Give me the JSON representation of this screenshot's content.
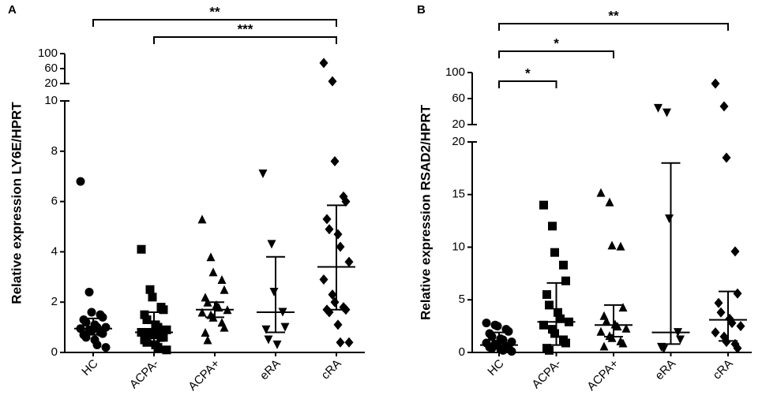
{
  "chart_data": [
    {
      "type": "dot",
      "panel": "A",
      "ylabel": "Relative expression LY6E/HPRT",
      "categories": [
        "HC",
        "ACPA-",
        "ACPA+",
        "eRA",
        "cRA"
      ],
      "markers": [
        "circle",
        "square",
        "triangle-up",
        "triangle-down",
        "diamond"
      ],
      "color": "#000000",
      "ylim": [
        0,
        10
      ],
      "yticks": [
        0,
        2,
        4,
        6,
        8,
        10
      ],
      "ylim_upper": [
        20,
        100
      ],
      "yticks_upper": [
        20,
        60,
        100
      ],
      "points": [
        [
          6.8,
          2.4,
          1.6,
          1.5,
          1.4,
          1.3,
          1.2,
          1.1,
          1.0,
          1.0,
          0.95,
          0.9,
          0.85,
          0.8,
          0.75,
          0.7,
          0.6,
          0.5,
          0.3,
          0.2
        ],
        [
          4.1,
          2.5,
          2.2,
          1.8,
          1.7,
          1.5,
          1.3,
          1.1,
          1.0,
          0.9,
          0.8,
          0.8,
          0.7,
          0.6,
          0.6,
          0.5,
          0.4,
          0.3,
          0.2,
          0.1
        ],
        [
          5.3,
          3.8,
          3.2,
          2.9,
          2.5,
          2.2,
          2.0,
          1.9,
          1.8,
          1.7,
          1.6,
          1.5,
          1.4,
          1.2,
          1.0,
          0.8,
          0.5
        ],
        [
          7.1,
          4.3,
          2.4,
          1.6,
          1.0,
          0.9,
          0.5,
          0.3
        ],
        [
          75,
          26,
          7.6,
          6.2,
          6.0,
          5.3,
          4.9,
          4.7,
          4.2,
          3.6,
          2.9,
          2.3,
          2.0,
          1.8,
          1.7,
          1.7,
          1.6,
          1.1,
          0.4,
          0.4
        ]
      ],
      "medians": [
        0.95,
        0.8,
        1.7,
        1.6,
        3.4
      ],
      "lower": [
        0.7,
        0.45,
        1.4,
        0.8,
        1.7
      ],
      "upper": [
        1.35,
        1.6,
        2.0,
        3.8,
        5.85
      ],
      "annotations": [
        {
          "from": 0,
          "to": 4,
          "label": "**"
        },
        {
          "from": 1,
          "to": 4,
          "label": "***"
        }
      ]
    },
    {
      "type": "dot",
      "panel": "B",
      "ylabel": "Relative expression RSAD2/HPRT",
      "categories": [
        "HC",
        "ACPA-",
        "ACPA+",
        "eRA",
        "cRA"
      ],
      "markers": [
        "circle",
        "square",
        "triangle-up",
        "triangle-down",
        "diamond"
      ],
      "color": "#000000",
      "ylim": [
        0,
        20
      ],
      "yticks": [
        0,
        5,
        10,
        15,
        20
      ],
      "ylim_upper": [
        20,
        100
      ],
      "yticks_upper": [
        20,
        60,
        100
      ],
      "points": [
        [
          2.8,
          2.6,
          2.5,
          2.2,
          2.0,
          1.8,
          1.5,
          1.3,
          1.2,
          1.0,
          0.9,
          0.8,
          0.7,
          0.6,
          0.5,
          0.5,
          0.4,
          0.3,
          0.2,
          0.1
        ],
        [
          14,
          12,
          9.5,
          8.3,
          6.8,
          5.5,
          4.5,
          3.8,
          3.2,
          2.9,
          2.6,
          2.2,
          1.8,
          1.2,
          0.9,
          0.4,
          0.2
        ],
        [
          15.2,
          14.3,
          10.2,
          10.1,
          4.3,
          3.5,
          3.0,
          2.7,
          2.5,
          2.3,
          2.0,
          1.6,
          1.4,
          1.1,
          0.9,
          0.6
        ],
        [
          45,
          38,
          12.7,
          1.9,
          1.2,
          0.5,
          0.3
        ],
        [
          83,
          48,
          18.5,
          9.6,
          5.6,
          4.7,
          3.8,
          3.2,
          2.8,
          2.5,
          1.9,
          1.5,
          1.0,
          0.8,
          0.4
        ]
      ],
      "medians": [
        0.7,
        2.9,
        2.6,
        1.9,
        3.1
      ],
      "lower": [
        0.4,
        0.7,
        1.5,
        0.8,
        1.1
      ],
      "upper": [
        1.9,
        6.6,
        4.5,
        18,
        5.8
      ],
      "annotations": [
        {
          "from": 0,
          "to": 1,
          "label": "*"
        },
        {
          "from": 0,
          "to": 2,
          "label": "*"
        },
        {
          "from": 0,
          "to": 4,
          "label": "**"
        }
      ]
    }
  ]
}
